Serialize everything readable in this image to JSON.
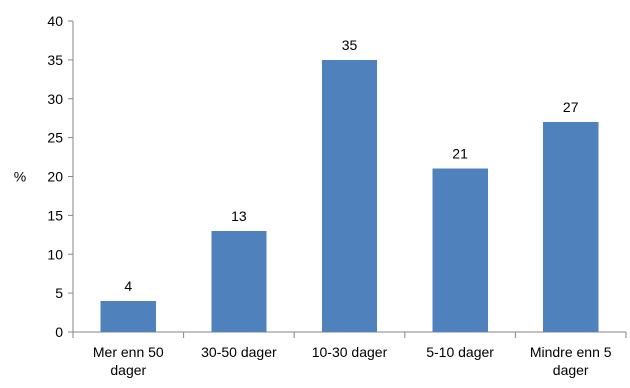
{
  "chart_data": {
    "type": "bar",
    "categories": [
      [
        "Mer enn 50",
        "dager"
      ],
      [
        "30-50 dager"
      ],
      [
        "10-30 dager"
      ],
      [
        "5-10 dager"
      ],
      [
        "Mindre enn 5",
        "dager"
      ]
    ],
    "values": [
      4,
      13,
      35,
      21,
      27
    ],
    "data_labels": [
      "4",
      "13",
      "35",
      "21",
      "27"
    ],
    "ylabel": "%",
    "ylim": [
      0,
      40
    ],
    "yticks": [
      0,
      5,
      10,
      15,
      20,
      25,
      30,
      35,
      40
    ],
    "grid": false,
    "bar_color": "#4F81BD"
  }
}
